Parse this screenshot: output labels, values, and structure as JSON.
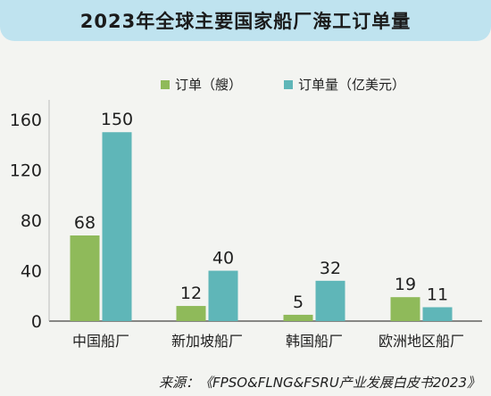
{
  "chart_data": {
    "type": "bar",
    "title": "2023年全球主要国家船厂海工订单量",
    "categories": [
      "中国船厂",
      "新加坡船厂",
      "韩国船厂",
      "欧洲地区船厂"
    ],
    "series": [
      {
        "name": "订单（艘）",
        "values": [
          68,
          12,
          5,
          19
        ],
        "color": "#8fba5a"
      },
      {
        "name": "订单量（亿美元）",
        "values": [
          150,
          40,
          32,
          11
        ],
        "color": "#5fb6b8"
      }
    ],
    "yticks": [
      0,
      40,
      80,
      120,
      160
    ],
    "ylim": [
      0,
      170
    ],
    "grid": false,
    "legend_position": "top",
    "xlabel": "",
    "ylabel": ""
  },
  "source": "来源：《FPSO&FLNG&FSRU产业发展白皮书2023》"
}
